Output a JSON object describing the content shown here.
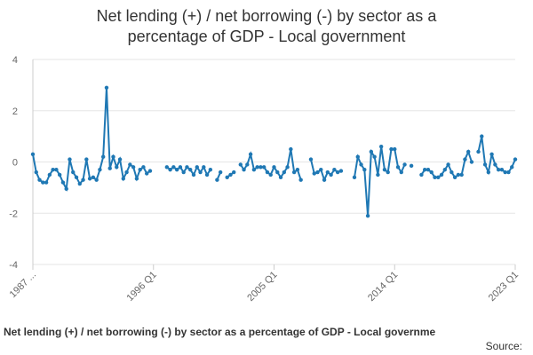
{
  "chart_data": {
    "type": "line",
    "title": "Net lending (+) / net borrowing (-) by sector as a",
    "subtitle": "percentage of GDP - Local government",
    "footer": "Net lending (+) / net borrowing (-) by sector as a percentage of GDP - Local governme",
    "source": "Source:",
    "categories": [
      "1987 ...",
      null,
      null,
      null,
      null,
      null,
      null,
      null,
      null,
      null,
      null,
      null,
      null,
      null,
      null,
      null,
      null,
      null,
      null,
      null,
      null,
      null,
      null,
      null,
      null,
      null,
      null,
      null,
      null,
      null,
      null,
      null,
      null,
      null,
      null,
      null,
      "1996 Q1",
      null,
      null,
      null,
      null,
      null,
      null,
      null,
      null,
      null,
      null,
      null,
      null,
      null,
      null,
      null,
      null,
      null,
      null,
      null,
      null,
      null,
      null,
      null,
      null,
      null,
      null,
      null,
      null,
      null,
      null,
      null,
      null,
      null,
      null,
      null,
      "2005 Q1",
      null,
      null,
      null,
      null,
      null,
      null,
      null,
      null,
      null,
      null,
      null,
      null,
      null,
      null,
      null,
      null,
      null,
      null,
      null,
      null,
      null,
      null,
      null,
      null,
      null,
      null,
      null,
      null,
      null,
      null,
      null,
      null,
      null,
      null,
      null,
      "2014 Q1",
      null,
      null,
      null,
      null,
      null,
      null,
      null,
      null,
      null,
      null,
      null,
      null,
      null,
      null,
      null,
      null,
      null,
      null,
      null,
      null,
      null,
      null,
      null,
      null,
      null,
      null,
      null,
      null,
      null,
      null,
      null,
      null,
      null,
      null,
      null,
      "2023 Q1"
    ],
    "values": [
      0.3,
      -0.4,
      -0.7,
      -0.8,
      -0.8,
      -0.5,
      -0.3,
      -0.3,
      -0.5,
      -0.8,
      -1.05,
      0.1,
      -0.4,
      -0.6,
      -0.85,
      -0.7,
      0.1,
      -0.65,
      -0.6,
      -0.7,
      -0.3,
      0.2,
      2.9,
      -0.25,
      0.2,
      -0.2,
      0.1,
      -0.65,
      -0.4,
      -0.1,
      -0.2,
      -0.65,
      -0.3,
      -0.2,
      -0.45,
      -0.35,
      null,
      null,
      null,
      null,
      -0.2,
      -0.3,
      -0.2,
      -0.3,
      -0.2,
      -0.4,
      -0.2,
      -0.3,
      -0.5,
      -0.2,
      -0.4,
      -0.2,
      -0.5,
      -0.3,
      null,
      -0.7,
      -0.4,
      null,
      -0.6,
      -0.5,
      -0.4,
      null,
      -0.1,
      -0.3,
      -0.1,
      0.3,
      -0.3,
      -0.2,
      -0.2,
      -0.2,
      -0.4,
      -0.5,
      -0.2,
      -0.4,
      -0.6,
      -0.4,
      -0.2,
      0.5,
      -0.4,
      -0.3,
      -0.7,
      null,
      null,
      0.1,
      -0.45,
      -0.4,
      -0.3,
      -0.7,
      -0.4,
      -0.5,
      -0.3,
      -0.4,
      -0.35,
      null,
      null,
      null,
      -0.6,
      0.2,
      -0.1,
      -0.3,
      -2.1,
      0.4,
      0.2,
      -0.5,
      0.6,
      -0.3,
      -0.4,
      0.5,
      0.5,
      -0.2,
      -0.4,
      -0.1,
      null,
      -0.15,
      null,
      null,
      -0.5,
      -0.3,
      -0.3,
      -0.4,
      -0.6,
      -0.6,
      -0.5,
      -0.3,
      -0.1,
      -0.4,
      -0.6,
      -0.5,
      -0.5,
      0.1,
      0.4,
      0.0,
      null,
      0.4,
      1.0,
      -0.1,
      -0.4,
      0.3,
      -0.1,
      -0.3,
      -0.3,
      -0.4,
      -0.4,
      -0.2,
      0.1
    ],
    "color": "#1f78b4",
    "ylim": [
      -4,
      4
    ],
    "yticks": [
      -4,
      -2,
      0,
      2,
      4
    ],
    "grid": true
  }
}
